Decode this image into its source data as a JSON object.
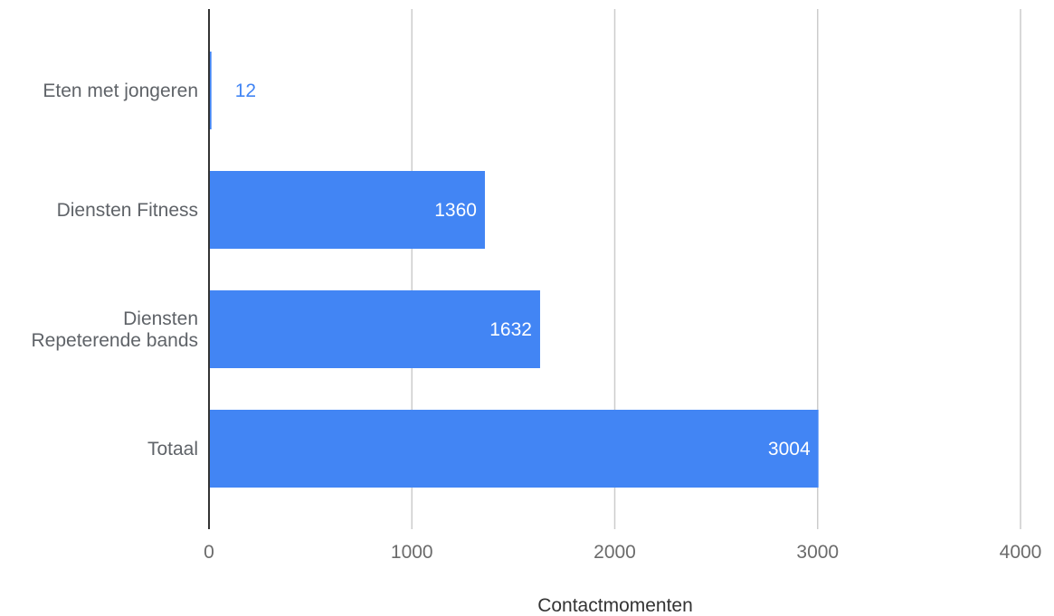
{
  "chart_data": {
    "type": "bar",
    "orientation": "horizontal",
    "categories": [
      [
        "Eten met jongeren"
      ],
      [
        "Diensten Fitness"
      ],
      [
        "Diensten",
        "Repeterende bands"
      ],
      [
        "Totaal"
      ]
    ],
    "values": [
      12,
      1360,
      1632,
      3004
    ],
    "xlabel": "Contactmomenten",
    "ylabel": "",
    "title": "",
    "xlim": [
      0,
      4000
    ],
    "xticks": [
      0,
      1000,
      2000,
      3000,
      4000
    ],
    "grid": true,
    "legend": "none",
    "data_labels": true
  },
  "colors": {
    "bar": "#4285f4",
    "label_inside": "#ffffff",
    "label_outside": "#4285f4",
    "grid": "#cccccc",
    "axis": "#333333"
  }
}
